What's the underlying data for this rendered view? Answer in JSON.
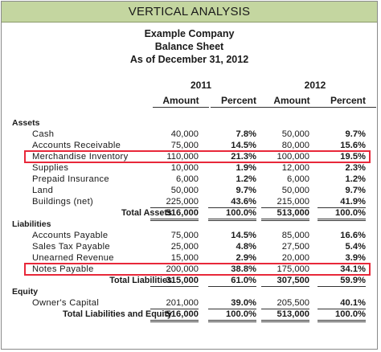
{
  "banner": "VERTICAL ANALYSIS",
  "header": {
    "company": "Example Company",
    "statement": "Balance Sheet",
    "date": "As of December 31, 2012"
  },
  "years": [
    "2011",
    "2012"
  ],
  "column_headers": [
    "Amount",
    "Percent",
    "Amount",
    "Percent"
  ],
  "highlight_color": "#e8283a",
  "banner_color": "#c4d6a0",
  "rows": [
    {
      "label": "Assets",
      "kind": "section"
    },
    {
      "label": "Cash",
      "kind": "item",
      "a2011": "40,000",
      "p2011": "7.8%",
      "a2012": "50,000",
      "p2012": "9.7%"
    },
    {
      "label": "Accounts Receivable",
      "kind": "item",
      "a2011": "75,000",
      "p2011": "14.5%",
      "a2012": "80,000",
      "p2012": "15.6%"
    },
    {
      "label": "Merchandise Inventory",
      "kind": "item",
      "highlight": true,
      "a2011": "110,000",
      "p2011": "21.3%",
      "a2012": "100,000",
      "p2012": "19.5%"
    },
    {
      "label": "Supplies",
      "kind": "item",
      "a2011": "10,000",
      "p2011": "1.9%",
      "a2012": "12,000",
      "p2012": "2.3%"
    },
    {
      "label": "Prepaid Insurance",
      "kind": "item",
      "a2011": "6,000",
      "p2011": "1.2%",
      "a2012": "6,000",
      "p2012": "1.2%"
    },
    {
      "label": "Land",
      "kind": "item",
      "a2011": "50,000",
      "p2011": "9.7%",
      "a2012": "50,000",
      "p2012": "9.7%"
    },
    {
      "label": "Buildings (net)",
      "kind": "item",
      "line": "single",
      "a2011": "225,000",
      "p2011": "43.6%",
      "a2012": "215,000",
      "p2012": "41.9%"
    },
    {
      "label": "Total Assets",
      "kind": "total",
      "line": "double",
      "a2011": "516,000",
      "p2011": "100.0%",
      "a2012": "513,000",
      "p2012": "100.0%"
    },
    {
      "label": "Liabilities",
      "kind": "section"
    },
    {
      "label": "Accounts Payable",
      "kind": "item",
      "a2011": "75,000",
      "p2011": "14.5%",
      "a2012": "85,000",
      "p2012": "16.6%"
    },
    {
      "label": "Sales Tax Payable",
      "kind": "item",
      "a2011": "25,000",
      "p2011": "4.8%",
      "a2012": "27,500",
      "p2012": "5.4%"
    },
    {
      "label": "Unearned Revenue",
      "kind": "item",
      "line": "single",
      "a2011": "15,000",
      "p2011": "2.9%",
      "a2012": "20,000",
      "p2012": "3.9%"
    },
    {
      "label": "Notes Payable",
      "kind": "item",
      "highlight": true,
      "a2011": "200,000",
      "p2011": "38.8%",
      "a2012": "175,000",
      "p2012": "34.1%"
    },
    {
      "label": "Total Liabilities",
      "kind": "total",
      "line": "single",
      "a2011": "315,000",
      "p2011": "61.0%",
      "a2012": "307,500",
      "p2012": "59.9%"
    },
    {
      "label": "Equity",
      "kind": "section"
    },
    {
      "label": "Owner's Capital",
      "kind": "item",
      "line": "single",
      "a2011": "201,000",
      "p2011": "39.0%",
      "a2012": "205,500",
      "p2012": "40.1%"
    },
    {
      "label": "Total Liabilities and Equity",
      "kind": "total",
      "line": "double",
      "a2011": "516,000",
      "p2011": "100.0%",
      "a2012": "513,000",
      "p2012": "100.0%"
    }
  ]
}
